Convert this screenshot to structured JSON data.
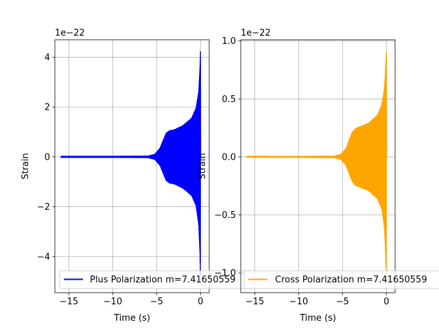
{
  "chart_data": [
    {
      "type": "line",
      "xlabel": "Time (s)",
      "ylabel": "Strain",
      "offset_text": "1e−22",
      "xlim": [
        -16.6,
        1.0
      ],
      "ylim": [
        -5.45,
        4.7
      ],
      "xticks": [
        -15,
        -10,
        -5,
        0
      ],
      "xtick_labels": [
        "−15",
        "−10",
        "−5",
        "0"
      ],
      "yticks": [
        -4,
        -2,
        0,
        2,
        4
      ],
      "ytick_labels": [
        "−4",
        "−2",
        "0",
        "2",
        "4"
      ],
      "grid": true,
      "legend_position": "lower-right",
      "series": [
        {
          "name": "Plus Polarization m=7.41650559",
          "color": "#0000ff",
          "x_range": [
            -15.9,
            0.1
          ],
          "envelope": {
            "x": [
              -15.9,
              -10,
              -6,
              -5.2,
              -4.6,
              -4.2,
              -3.9,
              -3.5,
              -3.0,
              -2.0,
              -1.0,
              -0.5,
              -0.2,
              -0.05,
              0.0
            ],
            "upper": [
              0.02,
              0.02,
              0.03,
              0.1,
              0.35,
              0.7,
              0.95,
              1.05,
              1.08,
              1.25,
              1.55,
              1.95,
              2.6,
              3.6,
              4.22
            ],
            "lower": [
              -0.02,
              -0.02,
              -0.03,
              -0.1,
              -0.35,
              -0.7,
              -0.95,
              -1.05,
              -1.08,
              -1.25,
              -1.55,
              -1.95,
              -2.7,
              -3.9,
              -5.0
            ]
          }
        }
      ]
    },
    {
      "type": "line",
      "xlabel": "Time (s)",
      "ylabel": "Strain",
      "offset_text": "1e−22",
      "xlim": [
        -16.6,
        1.0
      ],
      "ylim": [
        -1.17,
        1.01
      ],
      "xticks": [
        -15,
        -10,
        -5,
        0
      ],
      "xtick_labels": [
        "−15",
        "−10",
        "−5",
        "0"
      ],
      "yticks": [
        -1.0,
        -0.5,
        0.0,
        0.5,
        1.0
      ],
      "ytick_labels": [
        "−1.0",
        "−0.5",
        "0.0",
        "0.5",
        "1.0"
      ],
      "grid": true,
      "legend_position": "lower-right",
      "series": [
        {
          "name": "Cross Polarization m=7.41650559",
          "color": "#ffa500",
          "x_range": [
            -15.9,
            0.1
          ],
          "envelope": {
            "x": [
              -15.9,
              -10,
              -6,
              -5.2,
              -4.6,
              -4.2,
              -3.9,
              -3.5,
              -3.0,
              -2.0,
              -1.0,
              -0.5,
              -0.2,
              -0.05,
              0.0
            ],
            "upper": [
              0.005,
              0.004,
              0.006,
              0.02,
              0.07,
              0.15,
              0.21,
              0.245,
              0.26,
              0.29,
              0.36,
              0.45,
              0.6,
              0.82,
              0.9
            ],
            "lower": [
              -0.002,
              -0.004,
              -0.006,
              -0.02,
              -0.07,
              -0.15,
              -0.21,
              -0.245,
              -0.26,
              -0.29,
              -0.36,
              -0.45,
              -0.62,
              -0.9,
              -1.08
            ]
          }
        }
      ]
    }
  ]
}
